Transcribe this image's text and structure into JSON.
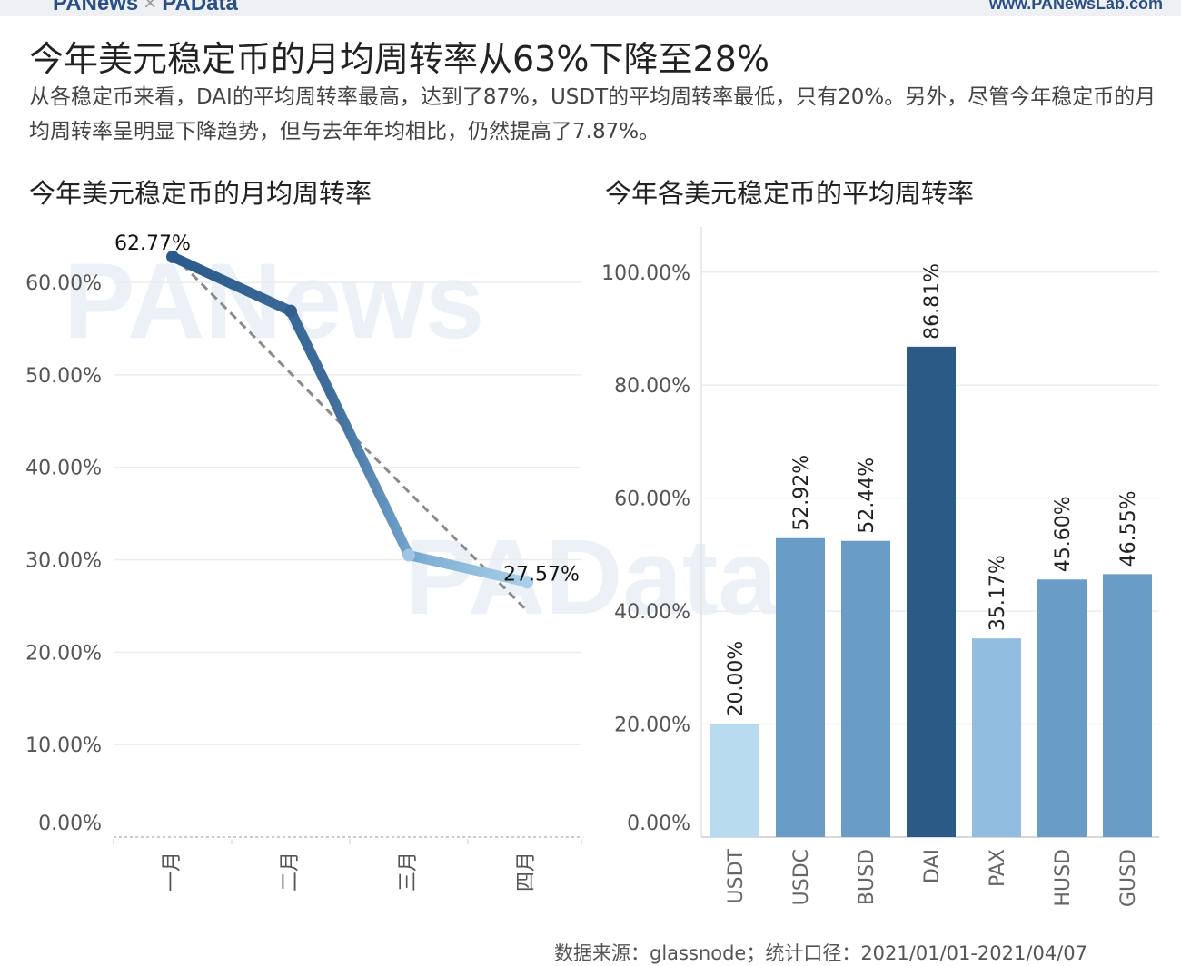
{
  "header": {
    "brand_left": "PANews",
    "brand_sep": "×",
    "brand_right": "PAData",
    "site": "www.PANewsLab.com"
  },
  "title": "今年美元稳定币的月均周转率从63%下降至28%",
  "subtitle": "从各稳定币来看，DAI的平均周转率最高，达到了87%，USDT的平均周转率最低，只有20%。另外，尽管今年稳定币的月均周转率呈明显下降趋势，但与去年年均相比，仍然提高了7.87%。",
  "source": "数据来源：glassnode；统计口径：2021/01/01-2021/04/07",
  "watermarks": [
    "PANews",
    "PAData"
  ],
  "colors": {
    "line_start": "#2b5b8c",
    "line_end": "#a9cfe8",
    "trend": "#8a8a8a",
    "bar_light": "#b9dbef",
    "bar_mid": "#6a9cc8",
    "bar_pax": "#90bde0",
    "bar_dark": "#2a5a86",
    "grid": "#ececec"
  },
  "chart_data": [
    {
      "type": "line",
      "title": "今年美元稳定币的月均周转率",
      "categories": [
        "一月",
        "二月",
        "三月",
        "四月"
      ],
      "values": [
        62.77,
        56.9,
        30.5,
        27.57
      ],
      "data_labels": [
        {
          "index": 0,
          "text": "62.77%"
        },
        {
          "index": 3,
          "text": "27.57%"
        }
      ],
      "trendline": {
        "start": 63.0,
        "end": 24.5
      },
      "ylim": [
        0,
        66
      ],
      "yticks": [
        0,
        10,
        20,
        30,
        40,
        50,
        60
      ],
      "ytick_labels": [
        "0.00%",
        "10.00%",
        "20.00%",
        "30.00%",
        "40.00%",
        "50.00%",
        "60.00%"
      ],
      "grid": true
    },
    {
      "type": "bar",
      "title": "今年各美元稳定币的平均周转率",
      "categories": [
        "USDT",
        "USDC",
        "BUSD",
        "DAI",
        "PAX",
        "HUSD",
        "GUSD"
      ],
      "values": [
        20.0,
        52.92,
        52.44,
        86.81,
        35.17,
        45.6,
        46.55
      ],
      "value_labels": [
        "20.00%",
        "52.92%",
        "52.44%",
        "86.81%",
        "35.17%",
        "45.60%",
        "46.55%"
      ],
      "bar_colors": [
        "#b9dbef",
        "#6a9cc8",
        "#6a9cc8",
        "#2a5a86",
        "#90bde0",
        "#6a9cc8",
        "#6a9cc8"
      ],
      "ylim": [
        0,
        108
      ],
      "yticks": [
        0,
        20,
        40,
        60,
        80,
        100
      ],
      "ytick_labels": [
        "0.00%",
        "20.00%",
        "40.00%",
        "60.00%",
        "80.00%",
        "100.00%"
      ],
      "grid": true
    }
  ]
}
